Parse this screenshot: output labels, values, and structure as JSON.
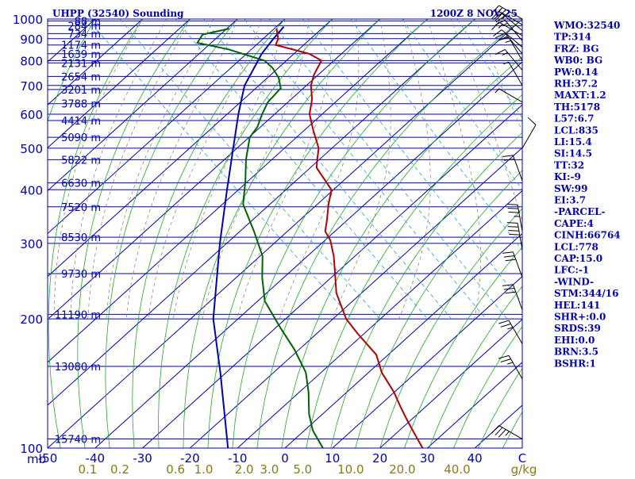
{
  "header": {
    "title": "UHPP (32540) Sounding",
    "time": "1200Z  8 NOV 25"
  },
  "colors": {
    "frame": "#0000b4",
    "temperature": "#b40000",
    "dewpoint": "#006400",
    "parcel": "#0000b4",
    "dry_adiabat": "#22aa22",
    "moist_adiabat": "#7f7f5a",
    "mixing_ratio": "#29a3c9",
    "isotherm": "#0000b4",
    "wind_barb": "#000000",
    "mixing_tick": "#8a7a1a"
  },
  "indices": [
    "WMO:32540",
    "TP:314",
    "FRZ: BG",
    "WB0: BG",
    "PW:0.14",
    "RH:37.2",
    "MAXT:1.2",
    "TH:5178",
    "L57:6.7",
    "LCL:835",
    "LI:15.4",
    "SI:14.5",
    "TT:32",
    "KI:-9",
    "SW:99",
    "EI:3.7",
    "-PARCEL-",
    "CAPE:4",
    "CINH:66764",
    "LCL:778",
    "CAP:15.0",
    "LFC:-1",
    "-WIND-",
    "STM:344/16",
    "HEL:141",
    "SHR+:0.0",
    "SRDS:39",
    "EHI:0.0",
    "BRN:3.5",
    "BSHR:1"
  ],
  "chart_data": {
    "type": "line",
    "subtype": "skew-t log-p sounding",
    "title": "UHPP (32540) Sounding",
    "xlabel": "C",
    "ylabel": "mb",
    "xlim": [
      -50,
      50
    ],
    "ylim": [
      1000,
      100
    ],
    "pressure_ticks": [
      {
        "label": "1000",
        "p": 1000
      },
      {
        "label": "900",
        "p": 900
      },
      {
        "label": "800",
        "p": 800
      },
      {
        "label": "700",
        "p": 700
      },
      {
        "label": "600",
        "p": 600
      },
      {
        "label": "500",
        "p": 500
      },
      {
        "label": "400",
        "p": 400
      },
      {
        "label": "300",
        "p": 300
      },
      {
        "label": "200",
        "p": 200
      },
      {
        "label": "100",
        "p": 100
      }
    ],
    "pressure_corner_label": "mb",
    "height_ticks": [
      {
        "label": "88 m",
        "p": 990
      },
      {
        "label": "284 m",
        "p": 965
      },
      {
        "label": "734 m",
        "p": 925
      },
      {
        "label": "1174 m",
        "p": 870
      },
      {
        "label": "1639 m",
        "p": 830
      },
      {
        "label": "2131 m",
        "p": 790
      },
      {
        "label": "2654 m",
        "p": 735
      },
      {
        "label": "3201 m",
        "p": 685
      },
      {
        "label": "3788 m",
        "p": 635
      },
      {
        "label": "4414 m",
        "p": 580
      },
      {
        "label": "5090 m",
        "p": 530
      },
      {
        "label": "5822 m",
        "p": 470
      },
      {
        "label": "6630 m",
        "p": 415
      },
      {
        "label": "7520 m",
        "p": 365
      },
      {
        "label": "8530 m",
        "p": 310
      },
      {
        "label": "9730 m",
        "p": 255
      },
      {
        "label": "11190 m",
        "p": 205
      },
      {
        "label": "13080 m",
        "p": 155
      },
      {
        "label": "15740 m",
        "p": 105
      }
    ],
    "temperature_ticks": [
      {
        "label": "-50",
        "t": -50
      },
      {
        "label": "-40",
        "t": -40
      },
      {
        "label": "-30",
        "t": -30
      },
      {
        "label": "-20",
        "t": -20
      },
      {
        "label": "-10",
        "t": -10
      },
      {
        "label": "0",
        "t": 0
      },
      {
        "label": "10",
        "t": 10
      },
      {
        "label": "20",
        "t": 20
      },
      {
        "label": "30",
        "t": 30
      },
      {
        "label": "40",
        "t": 40
      },
      {
        "label": "C",
        "t": 50
      }
    ],
    "mixing_ratio_ticks": [
      {
        "label": "0.1",
        "w": 0.1
      },
      {
        "label": "0.2",
        "w": 0.2
      },
      {
        "label": "0.6",
        "w": 0.6
      },
      {
        "label": "1.0",
        "w": 1.0
      },
      {
        "label": "2.0",
        "w": 2.0
      },
      {
        "label": "3.0",
        "w": 3.0
      },
      {
        "label": "5.0",
        "w": 5.0
      },
      {
        "label": "10.0",
        "w": 10.0
      },
      {
        "label": "20.0",
        "w": 20.0
      },
      {
        "label": "40.0",
        "w": 40.0
      }
    ],
    "mixing_ratio_unit": "g/kg",
    "temperature_profile": [
      {
        "p": 950,
        "t": -4
      },
      {
        "p": 900,
        "t": -6
      },
      {
        "p": 870,
        "t": -8
      },
      {
        "p": 830,
        "t": -3
      },
      {
        "p": 800,
        "t": -2
      },
      {
        "p": 740,
        "t": -7
      },
      {
        "p": 700,
        "t": -10
      },
      {
        "p": 650,
        "t": -13
      },
      {
        "p": 600,
        "t": -17
      },
      {
        "p": 550,
        "t": -20
      },
      {
        "p": 500,
        "t": -23
      },
      {
        "p": 470,
        "t": -26
      },
      {
        "p": 450,
        "t": -28
      },
      {
        "p": 400,
        "t": -30
      },
      {
        "p": 370,
        "t": -34
      },
      {
        "p": 340,
        "t": -38
      },
      {
        "p": 320,
        "t": -41
      },
      {
        "p": 305,
        "t": -42
      },
      {
        "p": 280,
        "t": -45
      },
      {
        "p": 260,
        "t": -48
      },
      {
        "p": 230,
        "t": -53
      },
      {
        "p": 200,
        "t": -57
      },
      {
        "p": 185,
        "t": -58
      },
      {
        "p": 165,
        "t": -59
      },
      {
        "p": 150,
        "t": -62
      },
      {
        "p": 135,
        "t": -64
      },
      {
        "p": 125,
        "t": -66
      },
      {
        "p": 115,
        "t": -68
      },
      {
        "p": 100,
        "t": -71
      }
    ],
    "dewpoint_profile": [
      {
        "p": 950,
        "t": -14
      },
      {
        "p": 920,
        "t": -21
      },
      {
        "p": 880,
        "t": -24
      },
      {
        "p": 850,
        "t": -19
      },
      {
        "p": 800,
        "t": -14
      },
      {
        "p": 770,
        "t": -14
      },
      {
        "p": 730,
        "t": -15
      },
      {
        "p": 690,
        "t": -17
      },
      {
        "p": 640,
        "t": -23
      },
      {
        "p": 600,
        "t": -27
      },
      {
        "p": 560,
        "t": -31
      },
      {
        "p": 530,
        "t": -35
      },
      {
        "p": 470,
        "t": -41
      },
      {
        "p": 420,
        "t": -46
      },
      {
        "p": 370,
        "t": -52
      },
      {
        "p": 320,
        "t": -56
      },
      {
        "p": 280,
        "t": -60
      },
      {
        "p": 250,
        "t": -65
      },
      {
        "p": 220,
        "t": -70
      },
      {
        "p": 190,
        "t": -73
      },
      {
        "p": 170,
        "t": -75
      },
      {
        "p": 150,
        "t": -78
      },
      {
        "p": 135,
        "t": -82
      },
      {
        "p": 120,
        "t": -87
      },
      {
        "p": 110,
        "t": -90
      },
      {
        "p": 100,
        "t": -92
      }
    ],
    "parcel_profile": [
      {
        "p": 960,
        "t": -2
      },
      {
        "p": 900,
        "t": -7
      },
      {
        "p": 830,
        "t": -13
      },
      {
        "p": 780,
        "t": -17
      },
      {
        "p": 700,
        "t": -24
      },
      {
        "p": 600,
        "t": -32
      },
      {
        "p": 500,
        "t": -41
      },
      {
        "p": 400,
        "t": -52
      },
      {
        "p": 300,
        "t": -66
      },
      {
        "p": 200,
        "t": -85
      },
      {
        "p": 150,
        "t": -96
      },
      {
        "p": 100,
        "t": -112
      }
    ],
    "wind_barbs": [
      {
        "p": 1000,
        "dir": 300,
        "spd": 35
      },
      {
        "p": 970,
        "dir": 300,
        "spd": 25
      },
      {
        "p": 940,
        "dir": 310,
        "spd": 20
      },
      {
        "p": 915,
        "dir": 300,
        "spd": 15
      },
      {
        "p": 890,
        "dir": 320,
        "spd": 15
      },
      {
        "p": 860,
        "dir": 310,
        "spd": 10
      },
      {
        "p": 830,
        "dir": 320,
        "spd": 15
      },
      {
        "p": 800,
        "dir": 330,
        "spd": 15
      },
      {
        "p": 760,
        "dir": 320,
        "spd": 15
      },
      {
        "p": 700,
        "dir": 330,
        "spd": 5
      },
      {
        "p": 640,
        "dir": 300,
        "spd": 5
      },
      {
        "p": 500,
        "dir": 30,
        "spd": 10
      },
      {
        "p": 420,
        "dir": 340,
        "spd": 20
      },
      {
        "p": 320,
        "dir": 350,
        "spd": 35
      },
      {
        "p": 290,
        "dir": 350,
        "spd": 40
      },
      {
        "p": 250,
        "dir": 340,
        "spd": 30
      },
      {
        "p": 210,
        "dir": 340,
        "spd": 30
      },
      {
        "p": 175,
        "dir": 330,
        "spd": 25
      },
      {
        "p": 145,
        "dir": 330,
        "spd": 25
      },
      {
        "p": 105,
        "dir": 300,
        "spd": 35
      }
    ]
  }
}
